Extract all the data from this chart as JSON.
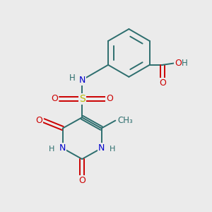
{
  "bg_color": "#ebebeb",
  "atom_colors": {
    "C": "#2d6e6e",
    "H": "#2d6e6e",
    "N": "#0000cc",
    "O": "#cc0000",
    "S": "#b8b800"
  },
  "bond_color": "#2d6e6e",
  "figsize": [
    3.0,
    3.0
  ],
  "dpi": 100
}
